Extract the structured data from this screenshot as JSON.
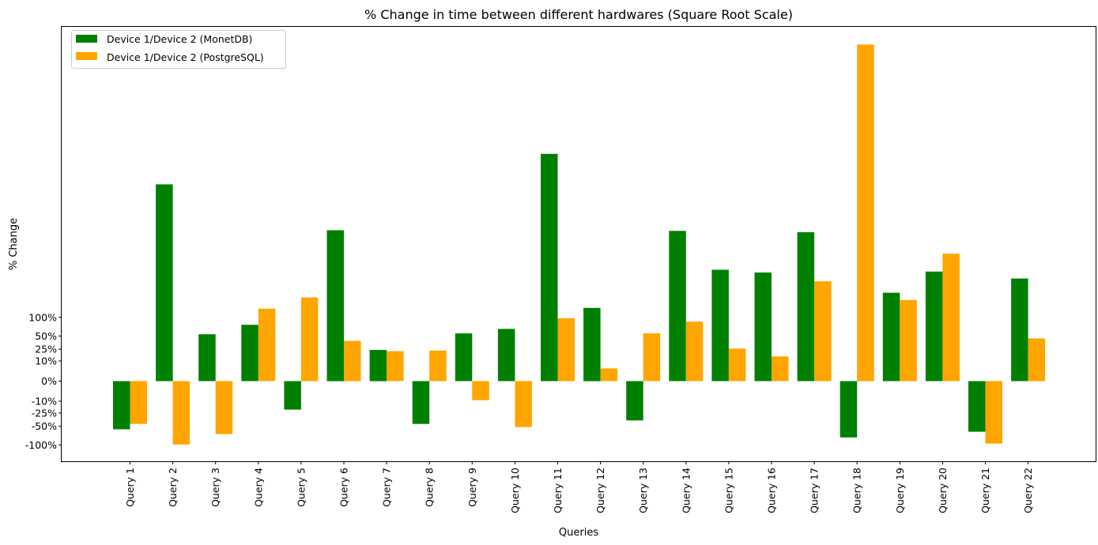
{
  "chart_data": {
    "type": "bar",
    "title": "% Change in time between different hardwares (Square Root Scale)",
    "xlabel": "Queries",
    "ylabel": "% Change",
    "scale": "square root (signed)",
    "grid": false,
    "legend_position": "top-left",
    "categories": [
      "Query 1",
      "Query 2",
      "Query 3",
      "Query 4",
      "Query 5",
      "Query 6",
      "Query 7",
      "Query 8",
      "Query 9",
      "Query 10",
      "Query 11",
      "Query 12",
      "Query 13",
      "Query 14",
      "Query 15",
      "Query 16",
      "Query 17",
      "Query 18",
      "Query 19",
      "Query 20",
      "Query 21",
      "Query 22"
    ],
    "series": [
      {
        "name": "Device 1/Device 2 (MonetDB)",
        "color": "#008000",
        "values": [
          -57,
          952,
          54,
          78,
          -20,
          560,
          24,
          -45,
          56,
          67,
          1270,
          132,
          -38,
          555,
          305,
          290,
          545,
          -78,
          192,
          295,
          -63,
          259
        ]
      },
      {
        "name": "Device 1/Device 2 (PostgreSQL)",
        "color": "#FFA500",
        "values": [
          -45,
          -99,
          -69,
          129,
          172,
          40,
          22,
          23,
          -9,
          -52,
          97,
          4,
          56,
          87,
          26,
          15,
          245,
          2786,
          162,
          399,
          -96,
          45
        ]
      }
    ],
    "yticks": [
      {
        "value": 100,
        "label": "100%"
      },
      {
        "value": 50,
        "label": "50%"
      },
      {
        "value": 25,
        "label": "25%"
      },
      {
        "value": 10,
        "label": "10%"
      },
      {
        "value": 0,
        "label": "0%"
      },
      {
        "value": -10,
        "label": "-10%"
      },
      {
        "value": -25,
        "label": "-25%"
      },
      {
        "value": -50,
        "label": "-50%"
      },
      {
        "value": -100,
        "label": "-100%"
      }
    ],
    "ylim": [
      -158,
      3086
    ]
  }
}
